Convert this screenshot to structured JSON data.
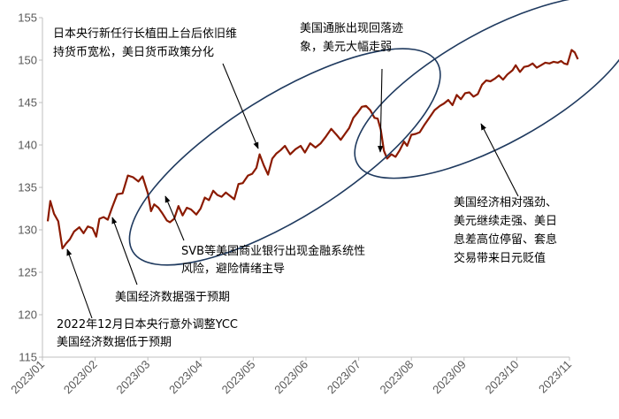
{
  "chart_data": {
    "type": "line",
    "title": "",
    "xlabel": "",
    "ylabel": "",
    "ylim": [
      115,
      155
    ],
    "yticks": [
      115,
      120,
      125,
      130,
      135,
      140,
      145,
      150,
      155
    ],
    "x_tick_labels": [
      "2023/01",
      "2023/02",
      "2023/03",
      "2023/04",
      "2023/05",
      "2023/06",
      "2023/07",
      "2023/08",
      "2023/09",
      "2023/10",
      "2023/11"
    ],
    "grid": false,
    "series_color": "#8B1A00",
    "annotation_color": "#1F3A5F",
    "series": [
      {
        "values": [
          [
            0.1,
            131.0
          ],
          [
            0.15,
            133.4
          ],
          [
            0.22,
            131.9
          ],
          [
            0.3,
            131.0
          ],
          [
            0.38,
            127.8
          ],
          [
            0.45,
            128.4
          ],
          [
            0.52,
            128.9
          ],
          [
            0.6,
            129.8
          ],
          [
            0.7,
            130.3
          ],
          [
            0.78,
            129.6
          ],
          [
            0.86,
            130.4
          ],
          [
            0.95,
            130.2
          ],
          [
            1.02,
            129.2
          ],
          [
            1.08,
            131.3
          ],
          [
            1.16,
            131.5
          ],
          [
            1.24,
            131.2
          ],
          [
            1.32,
            132.6
          ],
          [
            1.42,
            134.2
          ],
          [
            1.52,
            134.3
          ],
          [
            1.62,
            136.4
          ],
          [
            1.72,
            136.2
          ],
          [
            1.82,
            135.7
          ],
          [
            1.9,
            136.3
          ],
          [
            2.0,
            134.3
          ],
          [
            2.06,
            132.2
          ],
          [
            2.12,
            133.0
          ],
          [
            2.2,
            132.6
          ],
          [
            2.28,
            131.9
          ],
          [
            2.36,
            131.1
          ],
          [
            2.42,
            130.9
          ],
          [
            2.5,
            131.3
          ],
          [
            2.58,
            132.8
          ],
          [
            2.66,
            131.7
          ],
          [
            2.74,
            132.6
          ],
          [
            2.82,
            132.4
          ],
          [
            2.92,
            131.8
          ],
          [
            3.0,
            132.5
          ],
          [
            3.08,
            133.8
          ],
          [
            3.16,
            133.5
          ],
          [
            3.24,
            134.6
          ],
          [
            3.32,
            134.1
          ],
          [
            3.4,
            133.9
          ],
          [
            3.48,
            134.4
          ],
          [
            3.56,
            134.0
          ],
          [
            3.64,
            133.6
          ],
          [
            3.72,
            135.4
          ],
          [
            3.8,
            135.5
          ],
          [
            3.9,
            136.4
          ],
          [
            3.98,
            136.6
          ],
          [
            4.06,
            137.3
          ],
          [
            4.12,
            138.9
          ],
          [
            4.2,
            137.6
          ],
          [
            4.28,
            136.5
          ],
          [
            4.36,
            138.4
          ],
          [
            4.44,
            139.0
          ],
          [
            4.52,
            139.4
          ],
          [
            4.6,
            139.9
          ],
          [
            4.7,
            138.9
          ],
          [
            4.8,
            139.5
          ],
          [
            4.9,
            139.9
          ],
          [
            4.98,
            139.1
          ],
          [
            5.08,
            140.2
          ],
          [
            5.18,
            139.7
          ],
          [
            5.28,
            140.2
          ],
          [
            5.38,
            141.0
          ],
          [
            5.48,
            141.9
          ],
          [
            5.58,
            141.2
          ],
          [
            5.66,
            140.6
          ],
          [
            5.74,
            141.3
          ],
          [
            5.82,
            142.0
          ],
          [
            5.9,
            143.2
          ],
          [
            5.98,
            143.8
          ],
          [
            6.06,
            144.5
          ],
          [
            6.14,
            144.6
          ],
          [
            6.22,
            144.1
          ],
          [
            6.3,
            143.2
          ],
          [
            6.36,
            143.1
          ],
          [
            6.42,
            141.8
          ],
          [
            6.48,
            139.3
          ],
          [
            6.54,
            138.4
          ],
          [
            6.62,
            138.9
          ],
          [
            6.7,
            138.6
          ],
          [
            6.78,
            139.4
          ],
          [
            6.86,
            140.4
          ],
          [
            6.92,
            139.9
          ],
          [
            7.0,
            141.2
          ],
          [
            7.08,
            141.3
          ],
          [
            7.16,
            141.5
          ],
          [
            7.24,
            142.3
          ],
          [
            7.34,
            143.2
          ],
          [
            7.44,
            144.1
          ],
          [
            7.54,
            144.6
          ],
          [
            7.62,
            144.9
          ],
          [
            7.7,
            145.3
          ],
          [
            7.78,
            144.7
          ],
          [
            7.86,
            145.9
          ],
          [
            7.94,
            145.4
          ],
          [
            8.02,
            146.1
          ],
          [
            8.1,
            146.2
          ],
          [
            8.18,
            145.7
          ],
          [
            8.26,
            146.0
          ],
          [
            8.34,
            147.1
          ],
          [
            8.42,
            147.6
          ],
          [
            8.5,
            147.5
          ],
          [
            8.58,
            147.8
          ],
          [
            8.66,
            148.2
          ],
          [
            8.74,
            147.7
          ],
          [
            8.82,
            148.3
          ],
          [
            8.92,
            148.8
          ],
          [
            8.98,
            149.4
          ],
          [
            9.06,
            148.6
          ],
          [
            9.14,
            149.2
          ],
          [
            9.22,
            149.3
          ],
          [
            9.3,
            149.6
          ],
          [
            9.38,
            149.1
          ],
          [
            9.46,
            149.4
          ],
          [
            9.54,
            149.7
          ],
          [
            9.62,
            149.6
          ],
          [
            9.7,
            149.8
          ],
          [
            9.78,
            149.7
          ],
          [
            9.84,
            149.9
          ],
          [
            9.9,
            149.6
          ],
          [
            9.96,
            149.5
          ],
          [
            10.04,
            151.2
          ],
          [
            10.1,
            150.9
          ],
          [
            10.16,
            150.1
          ]
        ]
      }
    ],
    "annotations": [
      {
        "lines": [
          "日本央行新任行长植田上台后依旧维",
          "持货币宽松，美日货币政策分化"
        ]
      },
      {
        "lines": [
          "美国通胀出现回落迹",
          "象，美元大幅走弱"
        ]
      },
      {
        "lines": [
          "美国经济相对强劲、",
          "美元继续走强、美日",
          "息差高位停留、套息",
          "交易带来日元贬值"
        ]
      },
      {
        "lines": [
          "SVB等美国商业银行出现金融系统性",
          "风险，避险情绪主导"
        ]
      },
      {
        "lines": [
          "美国经济数据强于预期"
        ]
      },
      {
        "lines": [
          "2022年12月日本央行意外调整YCC",
          "美国经济数据低于预期"
        ]
      }
    ]
  }
}
